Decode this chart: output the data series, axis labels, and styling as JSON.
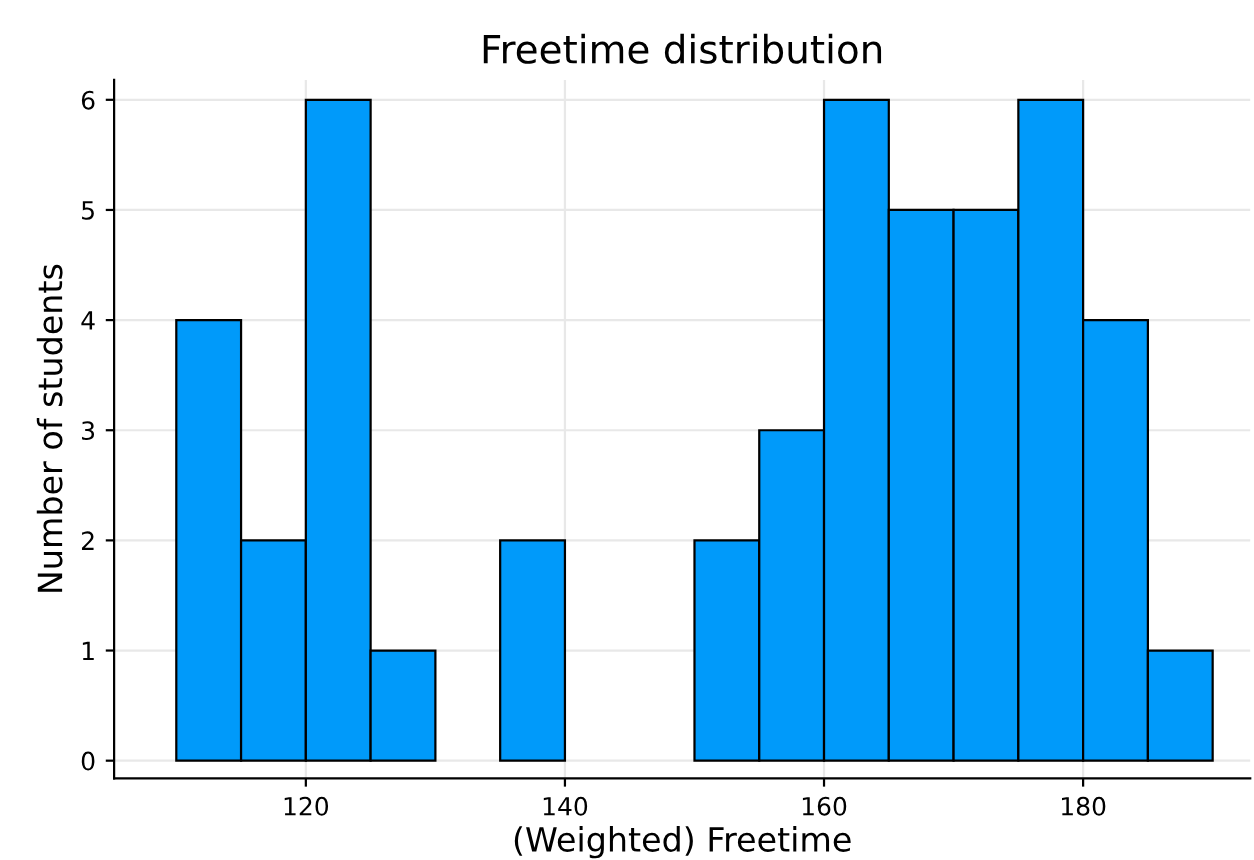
{
  "chart_data": {
    "type": "histogram",
    "title": "Freetime distribution",
    "xlabel": "(Weighted) Freetime",
    "ylabel": "Number of students",
    "bins": [
      110,
      115,
      120,
      125,
      130,
      135,
      140,
      145,
      150,
      155,
      160,
      165,
      170,
      175,
      180,
      185,
      190
    ],
    "values": [
      4,
      2,
      6,
      1,
      0,
      2,
      0,
      0,
      2,
      3,
      6,
      5,
      5,
      6,
      4,
      1
    ],
    "color": "#009afa",
    "xlim": [
      105.2,
      192.9
    ],
    "xticks": [
      120,
      140,
      160,
      180
    ],
    "ylim": [
      -0.16,
      6.18
    ],
    "yticks": [
      0,
      1,
      2,
      3,
      4,
      5,
      6
    ],
    "grid": true
  }
}
